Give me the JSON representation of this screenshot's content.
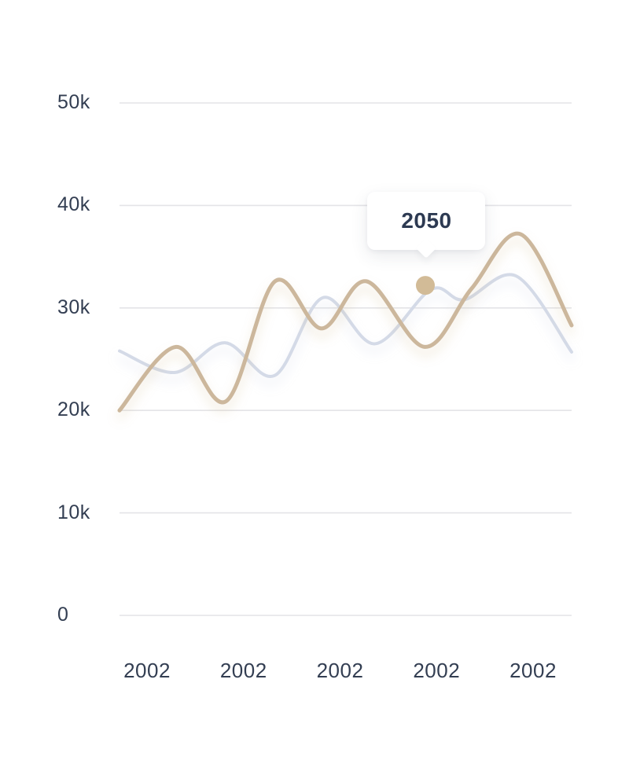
{
  "page": {
    "background": "#ffffff"
  },
  "colors": {
    "axis_label": "#333e52",
    "gridline": "#e4e4e7",
    "tooltip_text": "#2d3a52",
    "tooltip_background": "#ffffff"
  },
  "chart_data": {
    "type": "line",
    "title": "",
    "xlabel": "",
    "ylabel": "",
    "grid": true,
    "legend_position": "none",
    "ylim_k": [
      0,
      50
    ],
    "y_ticks": [
      "50k",
      "40k",
      "30k",
      "20k",
      "10k",
      "0"
    ],
    "y_tick_values_k": [
      50,
      40,
      30,
      20,
      10,
      0
    ],
    "x_ticks": [
      "2002",
      "2002",
      "2002",
      "2002",
      "2002"
    ],
    "series": [
      {
        "name": "secondary-line",
        "color": "#d4dae7",
        "stroke_width": 4,
        "shadow_color": "#b9c4da",
        "points_frac_x_value_k": [
          [
            0,
            25.8
          ],
          [
            0.122,
            23.7
          ],
          [
            0.233,
            26.6
          ],
          [
            0.343,
            23.4
          ],
          [
            0.45,
            31.0
          ],
          [
            0.565,
            26.5
          ],
          [
            0.689,
            31.8
          ],
          [
            0.762,
            30.8
          ],
          [
            0.878,
            33.1
          ],
          [
            1,
            25.7
          ]
        ]
      },
      {
        "name": "primary-line",
        "color": "#ccb79c",
        "stroke_width": 5,
        "shadow_color": "#cdb280",
        "points_frac_x_value_k": [
          [
            0,
            20.0
          ],
          [
            0.125,
            26.2
          ],
          [
            0.236,
            20.9
          ],
          [
            0.344,
            32.6
          ],
          [
            0.447,
            28.0
          ],
          [
            0.546,
            32.6
          ],
          [
            0.675,
            26.2
          ],
          [
            0.779,
            31.9
          ],
          [
            0.887,
            37.2
          ],
          [
            1,
            28.3
          ]
        ]
      }
    ],
    "active_point": {
      "x_frac": 0.6765,
      "value_k": 32.2,
      "color": "#d2bb97"
    },
    "tooltip": {
      "label": "2050"
    }
  }
}
